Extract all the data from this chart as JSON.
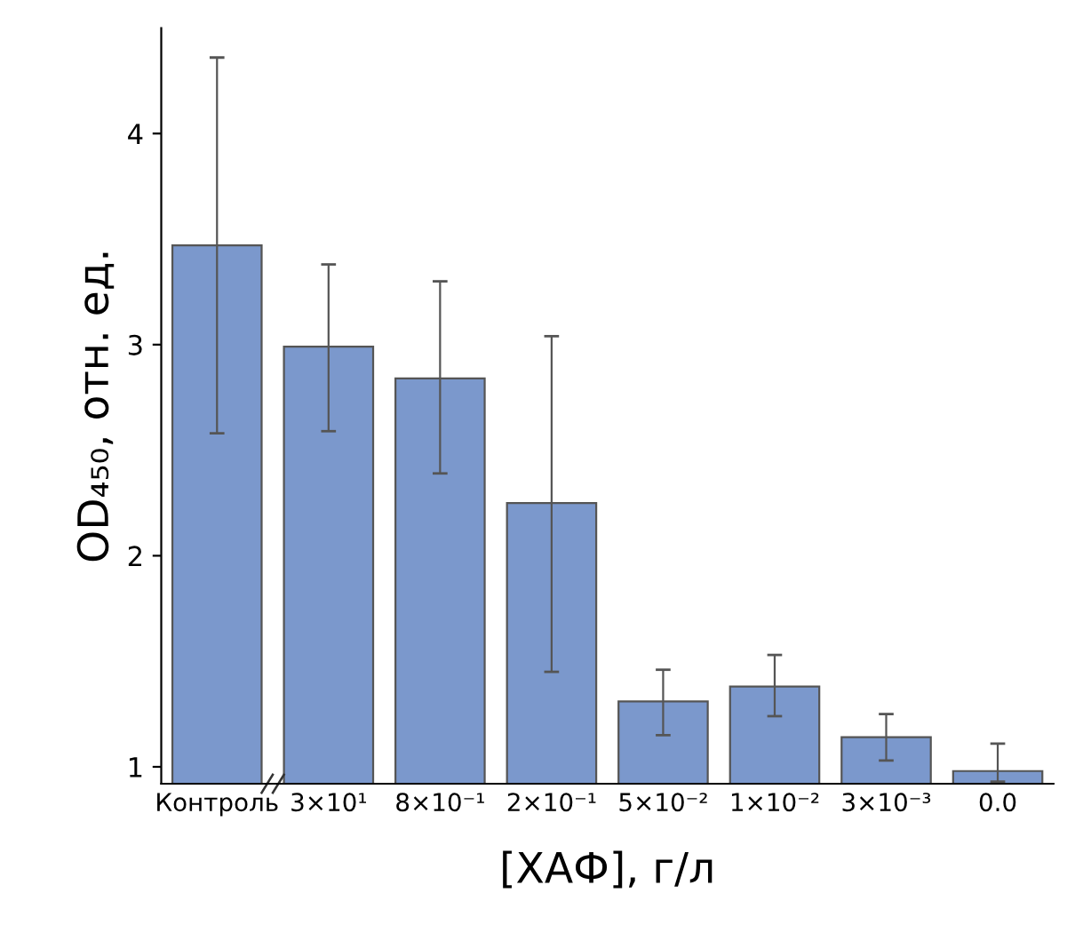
{
  "chart_data": {
    "type": "bar",
    "xlabel": "[ХАФ], г/л",
    "ylabel": "OD₄₅₀, отн. ед.",
    "categories": [
      "Контроль",
      "3×10¹",
      "8×10⁻¹",
      "2×10⁻¹",
      "5×10⁻²",
      "1×10⁻²",
      "3×10⁻³",
      "0.0"
    ],
    "values": [
      3.47,
      2.99,
      2.84,
      2.25,
      1.31,
      1.38,
      1.14,
      0.98
    ],
    "errors": [
      [
        2.58,
        4.36
      ],
      [
        2.59,
        3.38
      ],
      [
        2.39,
        3.3
      ],
      [
        1.45,
        3.04
      ],
      [
        1.15,
        1.46
      ],
      [
        1.24,
        1.53
      ],
      [
        1.03,
        1.25
      ],
      [
        0.93,
        1.11
      ]
    ],
    "color": "#7b98cc",
    "ylim": [
      0.92,
      4.5
    ],
    "yticks": [
      1,
      2,
      3,
      4
    ],
    "grid": false,
    "legend": false
  }
}
